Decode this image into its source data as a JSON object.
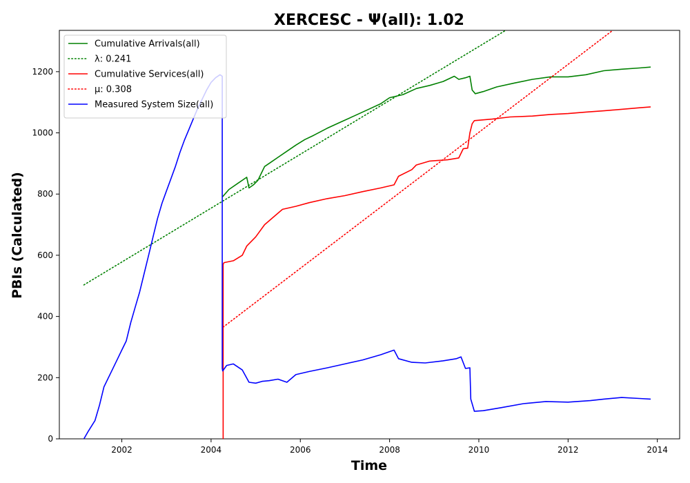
{
  "chart_data": {
    "type": "line",
    "title": "XERCESC -  Ψ(all): 1.02",
    "xlabel": "Time",
    "ylabel": "PBIs (Calculated)",
    "xlim": [
      2000.6,
      2014.5
    ],
    "ylim": [
      0,
      1335
    ],
    "x_ticks": [
      2002,
      2004,
      2006,
      2008,
      2010,
      2012,
      2014
    ],
    "y_ticks": [
      0,
      200,
      400,
      600,
      800,
      1000,
      1200
    ],
    "grid": false,
    "legend_position": "top-left",
    "series": [
      {
        "name": "Cumulative Arrivals(all)",
        "style": "solid",
        "color": "#008000",
        "x": [
          2004.25,
          2004.4,
          2004.6,
          2004.8,
          2004.85,
          2004.95,
          2005.05,
          2005.2,
          2005.35,
          2005.5,
          2005.7,
          2005.9,
          2006.1,
          2006.3,
          2006.6,
          2006.9,
          2007.2,
          2007.5,
          2007.8,
          2008.0,
          2008.3,
          2008.6,
          2008.9,
          2009.2,
          2009.45,
          2009.55,
          2009.7,
          2009.8,
          2009.85,
          2009.92,
          2010.1,
          2010.4,
          2010.8,
          2011.2,
          2011.6,
          2012.0,
          2012.4,
          2012.8,
          2013.2,
          2013.6,
          2013.85
        ],
        "values": [
          790,
          815,
          835,
          855,
          820,
          830,
          845,
          890,
          905,
          920,
          940,
          960,
          978,
          992,
          1015,
          1035,
          1055,
          1075,
          1095,
          1115,
          1125,
          1145,
          1155,
          1168,
          1185,
          1175,
          1180,
          1185,
          1140,
          1128,
          1135,
          1150,
          1163,
          1175,
          1183,
          1183,
          1190,
          1203,
          1208,
          1212,
          1215
        ]
      },
      {
        "name": "λ: 0.241",
        "style": "dotted",
        "color": "#008000",
        "x": [
          2001.15,
          2010.6
        ],
        "values": [
          503,
          1335
        ]
      },
      {
        "name": "Cumulative Services(all)",
        "style": "solid",
        "color": "#ff0000",
        "x": [
          2004.27,
          2004.27,
          2004.29,
          2004.5,
          2004.7,
          2004.8,
          2005.0,
          2005.2,
          2005.4,
          2005.6,
          2005.9,
          2006.2,
          2006.6,
          2007.0,
          2007.4,
          2007.8,
          2008.1,
          2008.2,
          2008.5,
          2008.6,
          2008.9,
          2009.3,
          2009.55,
          2009.65,
          2009.75,
          2009.8,
          2009.85,
          2009.9,
          2010.3,
          2010.7,
          2011.2,
          2011.6,
          2012.0,
          2012.4,
          2012.8,
          2013.2,
          2013.6,
          2013.85
        ],
        "values": [
          0,
          570,
          576,
          582,
          600,
          630,
          660,
          700,
          725,
          750,
          760,
          772,
          785,
          795,
          808,
          820,
          830,
          858,
          880,
          895,
          908,
          912,
          918,
          948,
          950,
          1000,
          1030,
          1040,
          1045,
          1052,
          1055,
          1060,
          1063,
          1068,
          1072,
          1077,
          1082,
          1085
        ]
      },
      {
        "name": "μ: 0.308",
        "style": "dotted",
        "color": "#ff0000",
        "x": [
          2004.27,
          2013.0
        ],
        "values": [
          365,
          1335
        ]
      },
      {
        "name": "Measured System Size(all)",
        "style": "solid",
        "color": "#0000ff",
        "x": [
          2001.15,
          2001.25,
          2001.4,
          2001.5,
          2001.6,
          2001.75,
          2001.9,
          2002.0,
          2002.1,
          2002.2,
          2002.3,
          2002.4,
          2002.5,
          2002.6,
          2002.7,
          2002.8,
          2002.9,
          2003.0,
          2003.1,
          2003.2,
          2003.3,
          2003.4,
          2003.5,
          2003.6,
          2003.7,
          2003.8,
          2003.9,
          2004.0,
          2004.1,
          2004.2,
          2004.25,
          2004.25,
          2004.26,
          2004.35,
          2004.5,
          2004.7,
          2004.85,
          2005.0,
          2005.15,
          2005.3,
          2005.5,
          2005.7,
          2005.9,
          2006.2,
          2006.6,
          2007.0,
          2007.4,
          2007.8,
          2008.0,
          2008.1,
          2008.2,
          2008.5,
          2008.8,
          2009.2,
          2009.5,
          2009.6,
          2009.7,
          2009.8,
          2009.82,
          2009.9,
          2010.1,
          2010.5,
          2011.0,
          2011.5,
          2012.0,
          2012.5,
          2012.8,
          2013.2,
          2013.6,
          2013.85
        ],
        "values": [
          0,
          25,
          60,
          110,
          170,
          215,
          260,
          290,
          320,
          380,
          430,
          480,
          540,
          600,
          660,
          720,
          770,
          810,
          850,
          890,
          935,
          975,
          1010,
          1045,
          1080,
          1110,
          1140,
          1165,
          1180,
          1190,
          1185,
          230,
          222,
          240,
          245,
          225,
          185,
          182,
          188,
          190,
          195,
          185,
          210,
          220,
          232,
          245,
          258,
          275,
          285,
          290,
          262,
          250,
          248,
          255,
          262,
          268,
          230,
          232,
          130,
          90,
          92,
          102,
          115,
          122,
          120,
          125,
          130,
          135,
          132,
          130
        ]
      }
    ]
  }
}
